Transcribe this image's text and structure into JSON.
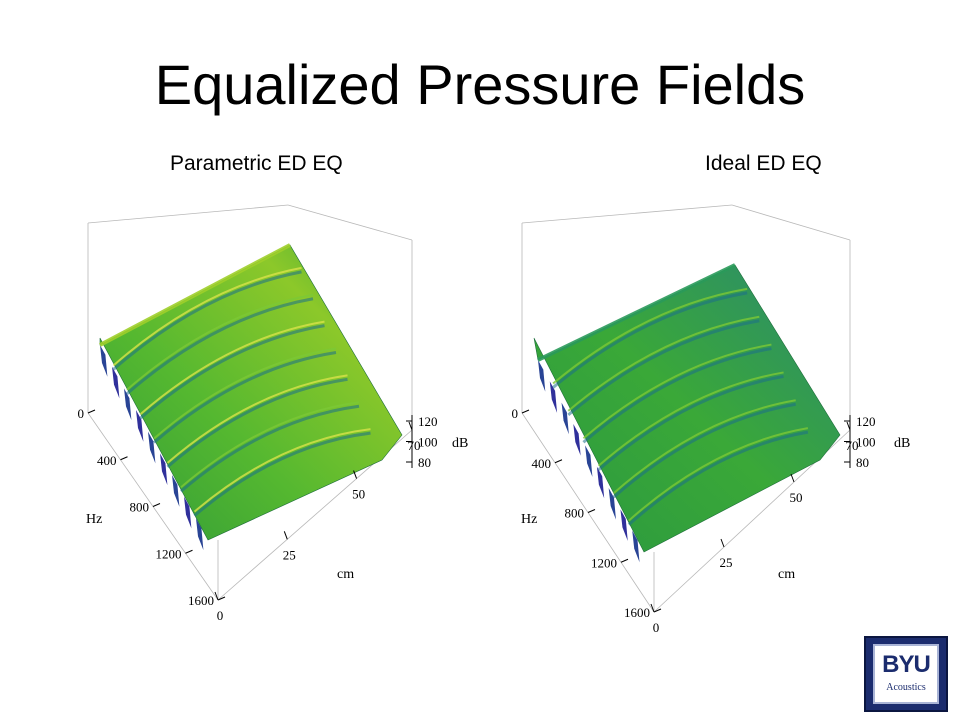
{
  "slide": {
    "title": "Equalized Pressure Fields"
  },
  "logo": {
    "mark": "BYU",
    "subtitle": "Acoustics"
  },
  "colors": {
    "surface_high": "#c8d820",
    "surface_mid": "#3aa838",
    "surface_low": "#1a7a9a",
    "surface_min": "#101080"
  },
  "chart_data": [
    {
      "type": "surface3d",
      "title": "Parametric ED EQ",
      "xlabel": "cm",
      "ylabel": "Hz",
      "zlabel": "dB",
      "x_ticks": [
        "0",
        "25",
        "50",
        "70"
      ],
      "y_ticks": [
        "0",
        "400",
        "800",
        "1200",
        "1600"
      ],
      "z_ticks": [
        "120",
        "100",
        "80"
      ],
      "xlim": [
        0,
        70
      ],
      "ylim": [
        0,
        1600
      ],
      "zlim": [
        80,
        120
      ],
      "grid": false
    },
    {
      "type": "surface3d",
      "title": "Ideal ED EQ",
      "xlabel": "cm",
      "ylabel": "Hz",
      "zlabel": "dB",
      "x_ticks": [
        "0",
        "25",
        "50",
        "70"
      ],
      "y_ticks": [
        "0",
        "400",
        "800",
        "1200",
        "1600"
      ],
      "z_ticks": [
        "120",
        "100",
        "80"
      ],
      "xlim": [
        0,
        70
      ],
      "ylim": [
        0,
        1600
      ],
      "zlim": [
        80,
        120
      ],
      "grid": false
    }
  ]
}
